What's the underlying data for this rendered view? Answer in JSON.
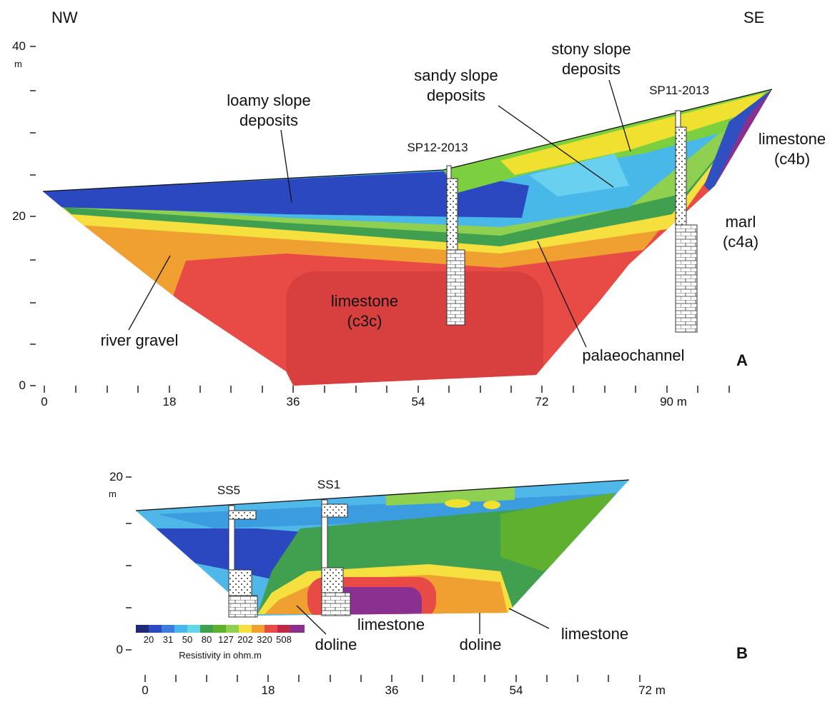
{
  "panel_a": {
    "label": "A",
    "left_label": "NW",
    "right_label": "SE",
    "y_axis": {
      "ticks": [
        "40",
        "20",
        "0"
      ],
      "unit": "m"
    },
    "x_ticks": [
      "0",
      "18",
      "36",
      "54",
      "72",
      "90 m"
    ],
    "boreholes": [
      "SP12-2013",
      "SP11-2013"
    ],
    "annotations": {
      "loamy": [
        "loamy slope",
        "deposits"
      ],
      "sandy": [
        "sandy slope",
        "deposits"
      ],
      "stony": [
        "stony slope",
        "deposits"
      ],
      "limestone_c4b": [
        "limestone",
        "(c4b)"
      ],
      "marl": [
        "marl",
        "(c4a)"
      ],
      "limestone_c3c": [
        "limestone",
        "(c3c)"
      ],
      "river_gravel": "river gravel",
      "palaeochannel": "palaeochannel"
    }
  },
  "panel_b": {
    "label": "B",
    "y_axis": {
      "ticks": [
        "20",
        "0"
      ],
      "unit": "m"
    },
    "x_ticks": [
      "0",
      "18",
      "36",
      "54",
      "72 m"
    ],
    "boreholes": [
      "SS5",
      "SS1"
    ],
    "annotations": {
      "limestone_1": "limestone",
      "limestone_2": "limestone",
      "doline_1": "doline",
      "doline_2": "doline"
    },
    "legend": {
      "title": "Resistivity in ohm.m",
      "labels": [
        "20",
        "31",
        "50",
        "80",
        "127",
        "202",
        "320",
        "508"
      ]
    }
  }
}
